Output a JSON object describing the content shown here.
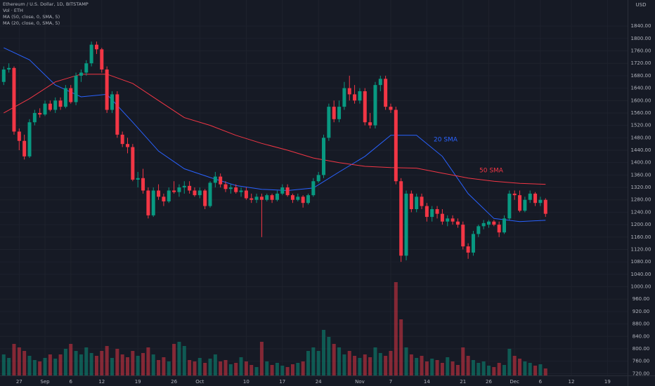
{
  "chart_data": {
    "type": "candlestick",
    "title": "Ethereum / U.S. Dollar, 1D, BITSTAMP",
    "volume_label": "Vol · ETH",
    "indicators": [
      "MA (50, close, 0, SMA, 5)",
      "MA (20, close, 0, SMA, 5)"
    ],
    "currency": "USD",
    "up_color": "#089981",
    "down_color": "#f23645",
    "grid": true,
    "xlim": [
      -0.72,
      120.9
    ],
    "xticks": [
      {
        "value": 3,
        "label": "27"
      },
      {
        "value": 8,
        "label": "Sep"
      },
      {
        "value": 13,
        "label": "6"
      },
      {
        "value": 19,
        "label": "12"
      },
      {
        "value": 26,
        "label": "19"
      },
      {
        "value": 33,
        "label": "26"
      },
      {
        "value": 38,
        "label": "Oct"
      },
      {
        "value": 47,
        "label": "10"
      },
      {
        "value": 54,
        "label": "17"
      },
      {
        "value": 61,
        "label": "24"
      },
      {
        "value": 69,
        "label": "Nov"
      },
      {
        "value": 75,
        "label": "7"
      },
      {
        "value": 82,
        "label": "14"
      },
      {
        "value": 89,
        "label": "21"
      },
      {
        "value": 94,
        "label": "26"
      },
      {
        "value": 99,
        "label": "Dec"
      },
      {
        "value": 104,
        "label": "6"
      },
      {
        "value": 110,
        "label": "12"
      },
      {
        "value": 117,
        "label": "19"
      }
    ],
    "ylim": [
      714,
      1924
    ],
    "yticks": [
      {
        "value": 720,
        "label": "720.00"
      },
      {
        "value": 760,
        "label": "760.00"
      },
      {
        "value": 800,
        "label": "800.00"
      },
      {
        "value": 840,
        "label": "840.00"
      },
      {
        "value": 880,
        "label": "880.00"
      },
      {
        "value": 920,
        "label": "920.00"
      },
      {
        "value": 960,
        "label": "960.00"
      },
      {
        "value": 1000,
        "label": "1000.00"
      },
      {
        "value": 1040,
        "label": "1040.00"
      },
      {
        "value": 1080,
        "label": "1080.00"
      },
      {
        "value": 1120,
        "label": "1120.00"
      },
      {
        "value": 1160,
        "label": "1160.00"
      },
      {
        "value": 1200,
        "label": "1200.00"
      },
      {
        "value": 1240,
        "label": "1240.00"
      },
      {
        "value": 1280,
        "label": "1280.00"
      },
      {
        "value": 1320,
        "label": "1320.00"
      },
      {
        "value": 1360,
        "label": "1360.00"
      },
      {
        "value": 1400,
        "label": "1400.00"
      },
      {
        "value": 1440,
        "label": "1440.00"
      },
      {
        "value": 1480,
        "label": "1480.00"
      },
      {
        "value": 1520,
        "label": "1520.00"
      },
      {
        "value": 1560,
        "label": "1560.00"
      },
      {
        "value": 1600,
        "label": "1600.00"
      },
      {
        "value": 1640,
        "label": "1640.00"
      },
      {
        "value": 1680,
        "label": "1680.00"
      },
      {
        "value": 1720,
        "label": "1720.00"
      },
      {
        "value": 1760,
        "label": "1760.00"
      },
      {
        "value": 1800,
        "label": "1800.00"
      },
      {
        "value": 1840,
        "label": "1840.00"
      }
    ],
    "open": [
      1660,
      1700,
      1705,
      1500,
      1470,
      1420,
      1530,
      1560,
      1555,
      1590,
      1570,
      1600,
      1580,
      1640,
      1595,
      1680,
      1690,
      1720,
      1780,
      1765,
      1700,
      1570,
      1620,
      1490,
      1460,
      1450,
      1345,
      1350,
      1310,
      1230,
      1310,
      1290,
      1275,
      1310,
      1305,
      1320,
      1325,
      1310,
      1295,
      1310,
      1260,
      1335,
      1355,
      1330,
      1315,
      1320,
      1305,
      1310,
      1285,
      1280,
      1290,
      1280,
      1295,
      1280,
      1300,
      1320,
      1295,
      1280,
      1290,
      1270,
      1295,
      1340,
      1360,
      1480,
      1580,
      1540,
      1580,
      1640,
      1620,
      1600,
      1630,
      1530,
      1520,
      1650,
      1670,
      1580,
      1570,
      1340,
      1100,
      1300,
      1250,
      1290,
      1260,
      1225,
      1250,
      1235,
      1210,
      1220,
      1210,
      1200,
      1130,
      1110,
      1170,
      1195,
      1200,
      1210,
      1200,
      1175,
      1220,
      1300,
      1295,
      1245,
      1280,
      1300,
      1270,
      1280
    ],
    "high": [
      1710,
      1720,
      1710,
      1510,
      1490,
      1540,
      1570,
      1575,
      1600,
      1600,
      1610,
      1610,
      1650,
      1650,
      1690,
      1700,
      1730,
      1790,
      1790,
      1770,
      1710,
      1630,
      1630,
      1500,
      1480,
      1460,
      1370,
      1380,
      1320,
      1320,
      1330,
      1300,
      1320,
      1340,
      1330,
      1340,
      1340,
      1320,
      1320,
      1315,
      1340,
      1370,
      1365,
      1340,
      1330,
      1330,
      1320,
      1320,
      1300,
      1300,
      1300,
      1300,
      1300,
      1310,
      1330,
      1330,
      1300,
      1300,
      1295,
      1300,
      1350,
      1370,
      1490,
      1590,
      1600,
      1600,
      1660,
      1680,
      1650,
      1640,
      1640,
      1560,
      1660,
      1680,
      1680,
      1590,
      1580,
      1350,
      1310,
      1310,
      1300,
      1300,
      1270,
      1260,
      1260,
      1250,
      1230,
      1230,
      1220,
      1210,
      1140,
      1180,
      1200,
      1215,
      1215,
      1215,
      1210,
      1230,
      1310,
      1310,
      1310,
      1290,
      1310,
      1305,
      1290,
      1285
    ],
    "low": [
      1650,
      1690,
      1490,
      1440,
      1410,
      1415,
      1520,
      1545,
      1550,
      1565,
      1560,
      1570,
      1575,
      1590,
      1585,
      1660,
      1680,
      1710,
      1750,
      1690,
      1560,
      1560,
      1480,
      1450,
      1430,
      1340,
      1320,
      1300,
      1220,
      1225,
      1280,
      1260,
      1270,
      1300,
      1290,
      1300,
      1300,
      1290,
      1285,
      1250,
      1255,
      1320,
      1320,
      1305,
      1300,
      1300,
      1290,
      1280,
      1270,
      1270,
      1160,
      1275,
      1270,
      1275,
      1295,
      1290,
      1270,
      1275,
      1255,
      1265,
      1290,
      1335,
      1350,
      1470,
      1530,
      1530,
      1570,
      1600,
      1590,
      1590,
      1520,
      1510,
      1510,
      1630,
      1570,
      1560,
      1330,
      1080,
      1085,
      1240,
      1240,
      1250,
      1210,
      1210,
      1220,
      1200,
      1195,
      1200,
      1190,
      1120,
      1090,
      1100,
      1160,
      1185,
      1190,
      1195,
      1160,
      1170,
      1215,
      1280,
      1240,
      1240,
      1270,
      1260,
      1260,
      1225
    ],
    "close": [
      1700,
      1705,
      1500,
      1470,
      1420,
      1530,
      1560,
      1555,
      1590,
      1570,
      1600,
      1580,
      1640,
      1595,
      1680,
      1690,
      1720,
      1780,
      1765,
      1700,
      1570,
      1620,
      1490,
      1460,
      1450,
      1345,
      1350,
      1310,
      1230,
      1310,
      1290,
      1275,
      1310,
      1305,
      1320,
      1325,
      1310,
      1295,
      1310,
      1260,
      1335,
      1355,
      1330,
      1315,
      1320,
      1305,
      1310,
      1285,
      1280,
      1290,
      1280,
      1295,
      1280,
      1300,
      1320,
      1295,
      1280,
      1290,
      1270,
      1295,
      1340,
      1360,
      1480,
      1580,
      1540,
      1580,
      1640,
      1620,
      1600,
      1630,
      1530,
      1520,
      1650,
      1670,
      1580,
      1570,
      1340,
      1100,
      1300,
      1250,
      1290,
      1260,
      1225,
      1250,
      1235,
      1210,
      1220,
      1210,
      1200,
      1130,
      1110,
      1170,
      1195,
      1205,
      1210,
      1200,
      1175,
      1220,
      1300,
      1295,
      1245,
      1280,
      1300,
      1270,
      1280,
      1235
    ],
    "vlim": [
      0,
      140
    ],
    "volume": [
      30,
      25,
      45,
      40,
      35,
      28,
      22,
      20,
      25,
      30,
      24,
      30,
      38,
      45,
      35,
      30,
      40,
      32,
      28,
      35,
      42,
      25,
      38,
      30,
      26,
      35,
      28,
      32,
      40,
      30,
      22,
      26,
      20,
      45,
      48,
      42,
      22,
      20,
      25,
      18,
      24,
      30,
      20,
      22,
      16,
      18,
      26,
      20,
      15,
      12,
      48,
      20,
      15,
      18,
      14,
      12,
      16,
      18,
      20,
      35,
      40,
      35,
      65,
      55,
      45,
      40,
      30,
      35,
      28,
      25,
      30,
      26,
      40,
      32,
      28,
      35,
      133,
      80,
      40,
      30,
      25,
      28,
      20,
      24,
      22,
      18,
      26,
      20,
      15,
      40,
      28,
      22,
      18,
      20,
      14,
      12,
      18,
      15,
      38,
      28,
      24,
      20,
      18,
      14,
      16,
      10
    ],
    "series": [
      {
        "name": "20 SMA",
        "color": "#2962ff",
        "x": [
          0,
          5,
          10,
          15,
          20,
          25,
          30,
          35,
          40,
          45,
          50,
          55,
          60,
          65,
          70,
          75,
          80,
          85,
          90,
          95,
          100,
          105
        ],
        "values": [
          1770,
          1731,
          1650,
          1612,
          1620,
          1530,
          1437,
          1380,
          1352,
          1326,
          1314,
          1310,
          1318,
          1370,
          1420,
          1488,
          1488,
          1420,
          1300,
          1220,
          1210,
          1214
        ]
      },
      {
        "name": "50 SMA",
        "color": "#f23645",
        "x": [
          0,
          5,
          10,
          15,
          20,
          25,
          30,
          35,
          40,
          45,
          50,
          55,
          60,
          65,
          70,
          75,
          80,
          85,
          90,
          95,
          100,
          105
        ],
        "values": [
          1560,
          1606,
          1660,
          1685,
          1685,
          1655,
          1600,
          1545,
          1520,
          1488,
          1462,
          1440,
          1415,
          1400,
          1388,
          1384,
          1382,
          1366,
          1350,
          1340,
          1333,
          1330
        ]
      }
    ]
  }
}
